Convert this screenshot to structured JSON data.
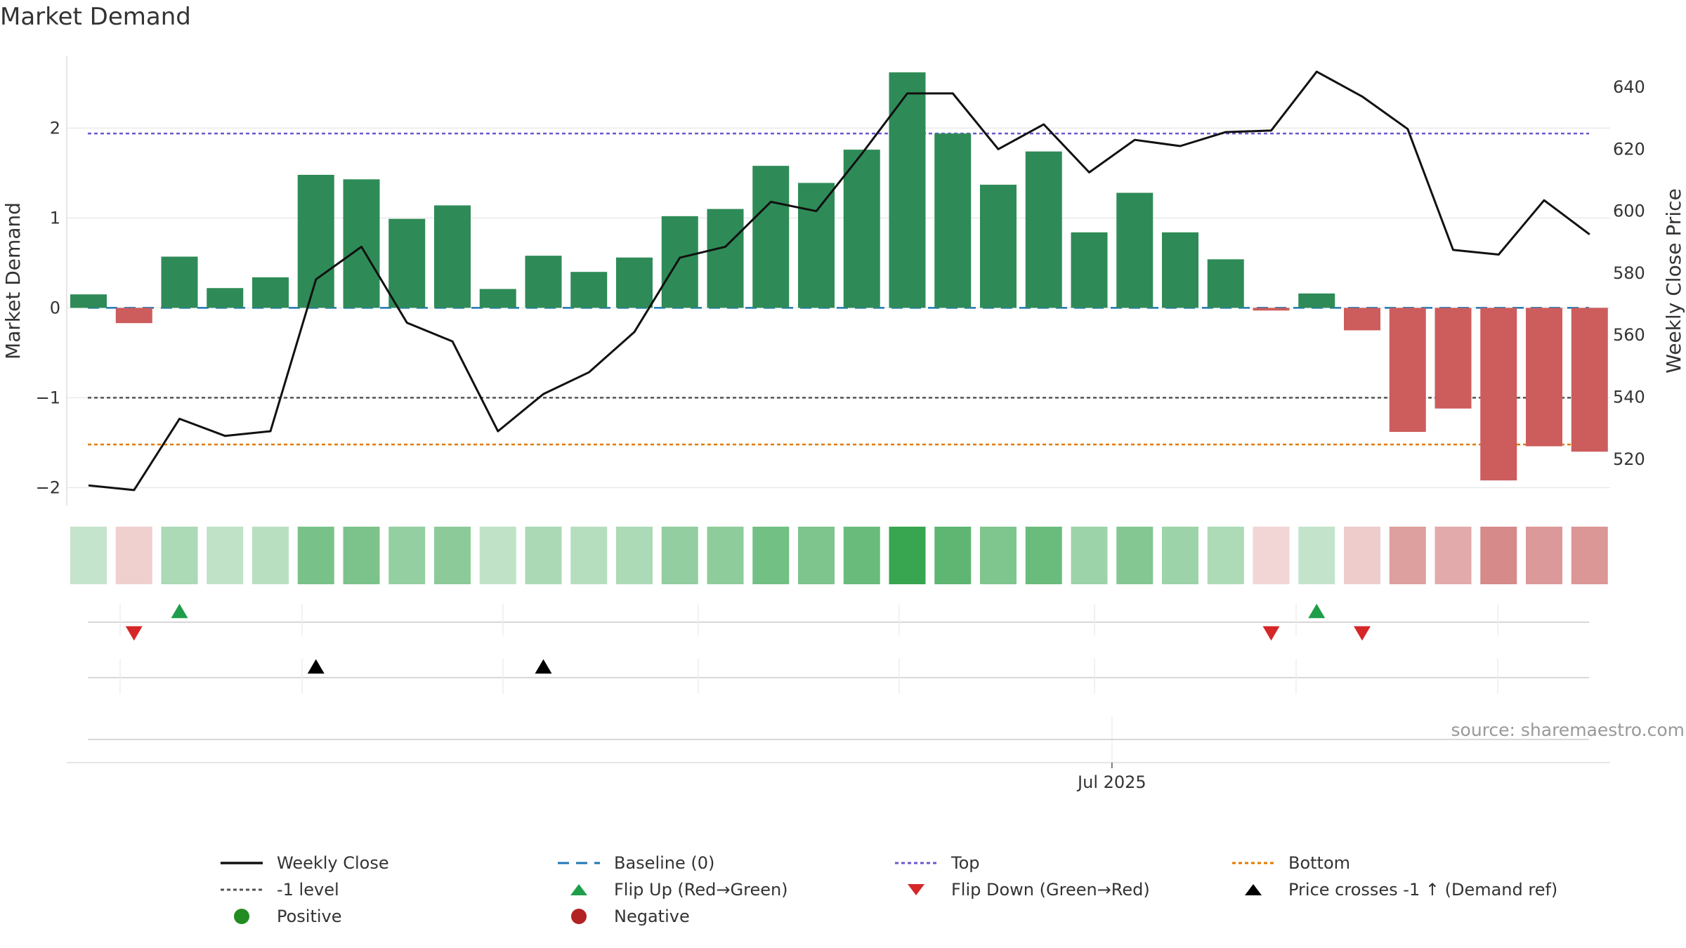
{
  "title": "Market Demand",
  "source": "source: sharemaestro.com",
  "colors": {
    "positive_bar": "#2e8b57",
    "negative_bar": "#cd5c5c",
    "price_line": "#111111",
    "baseline": "#1f77b4",
    "top": "#6a5acd",
    "bottom": "#e07b00",
    "minus1": "#555555",
    "flip_up": "#1e9e4a",
    "flip_down": "#d62728",
    "cross": "#000000",
    "positive_dot": "#228b22",
    "negative_dot": "#b22222"
  },
  "legend": [
    {
      "key": "weekly_close",
      "label": "Weekly Close",
      "symbol": "line"
    },
    {
      "key": "baseline",
      "label": "Baseline (0)",
      "symbol": "dash"
    },
    {
      "key": "top",
      "label": "Top",
      "symbol": "dot"
    },
    {
      "key": "bottom",
      "label": "Bottom",
      "symbol": "dot"
    },
    {
      "key": "minus1",
      "label": "-1 level",
      "symbol": "dot"
    },
    {
      "key": "flip_up",
      "label": "Flip Up (Red→Green)",
      "symbol": "tri-up"
    },
    {
      "key": "flip_down",
      "label": "Flip Down (Green→Red)",
      "symbol": "tri-down"
    },
    {
      "key": "cross",
      "label": "Price crosses -1 ↑ (Demand ref)",
      "symbol": "tri-up"
    },
    {
      "key": "positive_dot",
      "label": "Positive",
      "symbol": "circle"
    },
    {
      "key": "negative_dot",
      "label": "Negative",
      "symbol": "circle"
    }
  ],
  "chart_data": {
    "type": "bar",
    "title": "Market Demand",
    "ylabel": "Market Demand",
    "y2label": "Weekly Close Price",
    "ylim": [
      -2.2,
      2.8
    ],
    "y2lim": [
      505,
      650
    ],
    "yticks": [
      -2,
      -1,
      0,
      1,
      2
    ],
    "y2ticks": [
      520,
      540,
      560,
      580,
      600,
      620,
      640
    ],
    "xticks": [
      "Jul 2025"
    ],
    "xtick_week_index": 22.5,
    "grid": true,
    "legend_position": "bottom",
    "reference_lines": {
      "baseline": 0,
      "top": 1.94,
      "minus1": -1,
      "bottom": -1.52
    },
    "series": [
      {
        "name": "Market Demand",
        "values": [
          0.15,
          -0.17,
          0.57,
          0.22,
          0.34,
          1.48,
          1.43,
          0.99,
          1.14,
          0.21,
          0.58,
          0.4,
          0.56,
          1.02,
          1.1,
          1.58,
          1.39,
          1.76,
          2.62,
          1.94,
          1.37,
          1.74,
          0.84,
          1.28,
          0.84,
          0.54,
          -0.03,
          0.16,
          -0.25,
          -1.38,
          -1.12,
          -1.92,
          -1.54,
          -1.6
        ]
      },
      {
        "name": "Weekly Close",
        "values": [
          511.5,
          510,
          533,
          527.5,
          529,
          578,
          588.5,
          564,
          558,
          529,
          541,
          548,
          561,
          585,
          588.5,
          603,
          600,
          618.5,
          638,
          638,
          620,
          628,
          612.5,
          623,
          621,
          625.5,
          626,
          645,
          637,
          626.5,
          587.5,
          586,
          603.5,
          592.5
        ]
      }
    ],
    "heat_strip": [
      0.15,
      -0.17,
      0.57,
      0.22,
      0.34,
      1.48,
      1.43,
      0.99,
      1.14,
      0.21,
      0.58,
      0.4,
      0.56,
      1.02,
      1.1,
      1.58,
      1.39,
      1.76,
      2.62,
      1.94,
      1.37,
      1.74,
      0.84,
      1.28,
      0.84,
      0.54,
      -0.03,
      0.16,
      -0.25,
      -1.38,
      -1.12,
      -1.92,
      -1.54,
      -1.6
    ],
    "flip_up_weeks": [
      2,
      27
    ],
    "flip_down_weeks": [
      1,
      26,
      28
    ],
    "price_cross_weeks": [
      5,
      10
    ]
  }
}
